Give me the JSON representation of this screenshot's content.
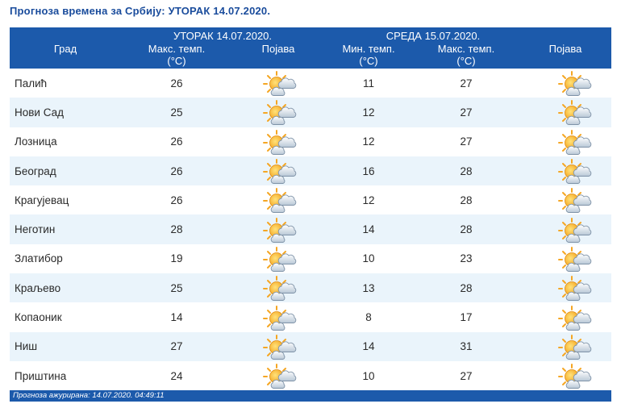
{
  "title": "Прогноза времена за Србију: УТОРАК  14.07.2020.",
  "header": {
    "city": "Град",
    "day1": "УТОРАК  14.07.2020.",
    "day1_max": "Макс. темп.",
    "day1_max_unit": "(°C)",
    "day1_phenomenon": "Појава",
    "day2": "СРЕДА  15.07.2020.",
    "day2_min": "Мин. темп.",
    "day2_min_unit": "(°C)",
    "day2_max": "Макс. темп.",
    "day2_max_unit": "(°C)",
    "day2_phenomenon": "Појава"
  },
  "rows": [
    {
      "city": "Палић",
      "day1_max": "26",
      "day1_icon": "partly-cloudy-icon",
      "day2_min": "11",
      "day2_max": "27",
      "day2_icon": "partly-cloudy-icon"
    },
    {
      "city": "Нови Сад",
      "day1_max": "25",
      "day1_icon": "partly-cloudy-icon",
      "day2_min": "12",
      "day2_max": "27",
      "day2_icon": "partly-cloudy-icon"
    },
    {
      "city": "Лозница",
      "day1_max": "26",
      "day1_icon": "partly-cloudy-icon",
      "day2_min": "12",
      "day2_max": "27",
      "day2_icon": "partly-cloudy-icon"
    },
    {
      "city": "Београд",
      "day1_max": "26",
      "day1_icon": "partly-cloudy-icon",
      "day2_min": "16",
      "day2_max": "28",
      "day2_icon": "partly-cloudy-icon"
    },
    {
      "city": "Крагујевац",
      "day1_max": "26",
      "day1_icon": "partly-cloudy-icon",
      "day2_min": "12",
      "day2_max": "28",
      "day2_icon": "partly-cloudy-icon"
    },
    {
      "city": "Неготин",
      "day1_max": "28",
      "day1_icon": "partly-cloudy-icon",
      "day2_min": "14",
      "day2_max": "28",
      "day2_icon": "partly-cloudy-icon"
    },
    {
      "city": "Златибор",
      "day1_max": "19",
      "day1_icon": "partly-cloudy-icon",
      "day2_min": "10",
      "day2_max": "23",
      "day2_icon": "partly-cloudy-icon"
    },
    {
      "city": "Краљево",
      "day1_max": "25",
      "day1_icon": "partly-cloudy-icon",
      "day2_min": "13",
      "day2_max": "28",
      "day2_icon": "partly-cloudy-icon"
    },
    {
      "city": "Копаоник",
      "day1_max": "14",
      "day1_icon": "partly-cloudy-icon",
      "day2_min": "8",
      "day2_max": "17",
      "day2_icon": "partly-cloudy-icon"
    },
    {
      "city": "Ниш",
      "day1_max": "27",
      "day1_icon": "partly-cloudy-icon",
      "day2_min": "14",
      "day2_max": "31",
      "day2_icon": "partly-cloudy-icon"
    },
    {
      "city": "Приштина",
      "day1_max": "24",
      "day1_icon": "partly-cloudy-icon",
      "day2_min": "10",
      "day2_max": "27",
      "day2_icon": "partly-cloudy-icon"
    }
  ],
  "footer": "Прогноза ажурирана:  14.07.2020. 04:49:11",
  "colors": {
    "header_bg": "#1c5aab",
    "title": "#1a4c9c",
    "row_alt": "#eaf4fb"
  }
}
